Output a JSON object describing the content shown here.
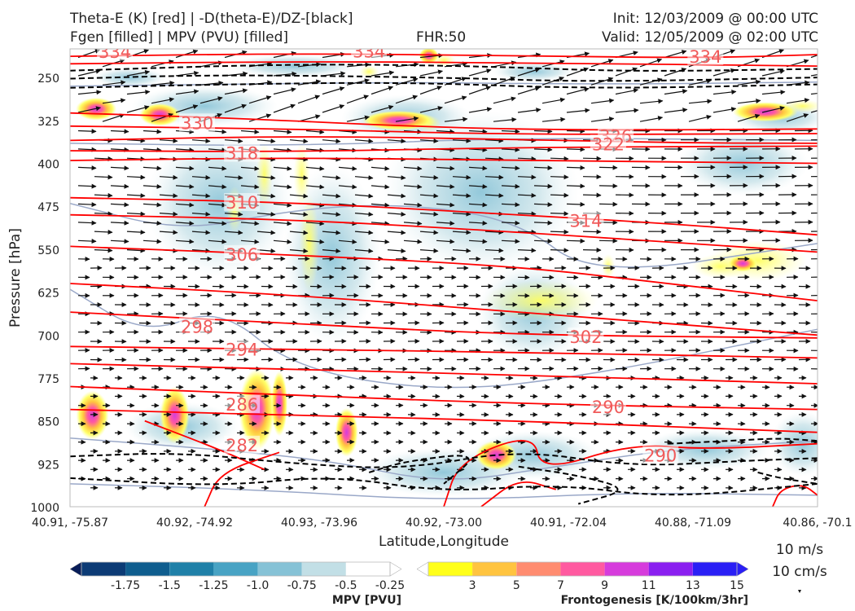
{
  "header": {
    "title_line1": "Theta-E (K) [red] | -D(theta-E)/DZ-[black]",
    "title_line2": "Fgen [filled] | MPV (PVU) [filled]",
    "fhr": "FHR:50",
    "init": "Init: 12/03/2009 @ 00:00 UTC",
    "valid": "Valid: 12/05/2009 @ 02:00 UTC"
  },
  "chart_data": {
    "type": "cross-section",
    "xlabel": "Latitude,Longitude",
    "ylabel": "Pressure [hPa]",
    "ylim": [
      1000,
      200
    ],
    "y_ticks": [
      250,
      325,
      400,
      475,
      550,
      625,
      700,
      775,
      850,
      925,
      1000
    ],
    "x_ticks": [
      "40.91, -75.87",
      "40.92, -74.92",
      "40.93, -73.96",
      "40.92, -73.00",
      "40.91, -72.04",
      "40.88, -71.09",
      "40.86, -70.1"
    ],
    "theta_e_labels": [
      {
        "label": "334",
        "x": 0.06,
        "p": 206
      },
      {
        "label": "334",
        "x": 0.4,
        "p": 205
      },
      {
        "label": "334",
        "x": 0.85,
        "p": 214
      },
      {
        "label": "330",
        "x": 0.17,
        "p": 330
      },
      {
        "label": "326",
        "x": 0.73,
        "p": 353
      },
      {
        "label": "322",
        "x": 0.72,
        "p": 367
      },
      {
        "label": "318",
        "x": 0.23,
        "p": 383
      },
      {
        "label": "314",
        "x": 0.69,
        "p": 501
      },
      {
        "label": "310",
        "x": 0.23,
        "p": 469
      },
      {
        "label": "306",
        "x": 0.23,
        "p": 560
      },
      {
        "label": "302",
        "x": 0.69,
        "p": 704
      },
      {
        "label": "298",
        "x": 0.17,
        "p": 686
      },
      {
        "label": "294",
        "x": 0.23,
        "p": 726
      },
      {
        "label": "290",
        "x": 0.72,
        "p": 826
      },
      {
        "label": "290",
        "x": 0.79,
        "p": 911
      },
      {
        "label": "286",
        "x": 0.23,
        "p": 822
      },
      {
        "label": "282",
        "x": 0.23,
        "p": 893
      }
    ],
    "colorbars": [
      {
        "label": "MPV [PVU]",
        "ticks": [
          "-1.75",
          "-1.5",
          "-1.25",
          "-1.0",
          "-0.75",
          "-0.5",
          "-0.25"
        ],
        "colors": [
          "#081d58",
          "#0c3b75",
          "#0f5d8e",
          "#1f80a8",
          "#48a3c4",
          "#86c2d6",
          "#c2dfe6",
          "#ffffff"
        ]
      },
      {
        "label": "Frontogenesis [K/100km/3hr]",
        "ticks": [
          "3",
          "5",
          "7",
          "9",
          "11",
          "13",
          "15"
        ],
        "colors": [
          "#ffffff",
          "#ffff1a",
          "#ffc440",
          "#ff8c70",
          "#ff5aa0",
          "#d63cdc",
          "#8a1ff0",
          "#2a1ff5"
        ]
      }
    ],
    "reference_vectors": [
      "10 m/s",
      "10 cm/s"
    ],
    "colors": {
      "theta_e": "#ff0000",
      "theta_e_label": "#f05a5a",
      "dtheta": "#000000",
      "mpv_line": "#9aa8c8",
      "arrow": "#111111"
    }
  }
}
